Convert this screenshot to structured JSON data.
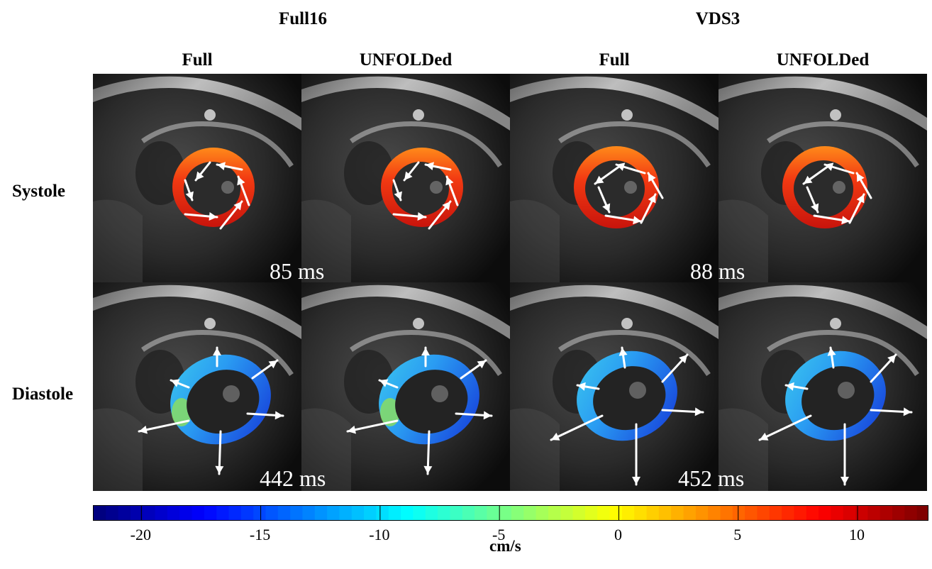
{
  "groups": [
    {
      "title": "Full16"
    },
    {
      "title": "VDS3"
    }
  ],
  "columns": [
    {
      "label": "Full"
    },
    {
      "label": "UNFOLDed"
    },
    {
      "label": "Full"
    },
    {
      "label": "UNFOLDed"
    }
  ],
  "rows": [
    {
      "label": "Systole"
    },
    {
      "label": "Diastole"
    }
  ],
  "time_labels": {
    "full16_systole": "85 ms",
    "vds3_systole": "88 ms",
    "full16_diastole": "442 ms",
    "vds3_diastole": "452 ms"
  },
  "colorbar": {
    "min": -22,
    "max": 13,
    "ticks": [
      "-20",
      "-15",
      "-10",
      "-5",
      "0",
      "5",
      "10"
    ],
    "tick_values": [
      -20,
      -15,
      -10,
      -5,
      0,
      5,
      10
    ],
    "unit": "cm/s",
    "colormap": "jet"
  },
  "colors": {
    "systole_ring": "#e8321a",
    "diastole_ring": "#2a8ff0",
    "arrow": "#ffffff",
    "background": "#000000"
  }
}
